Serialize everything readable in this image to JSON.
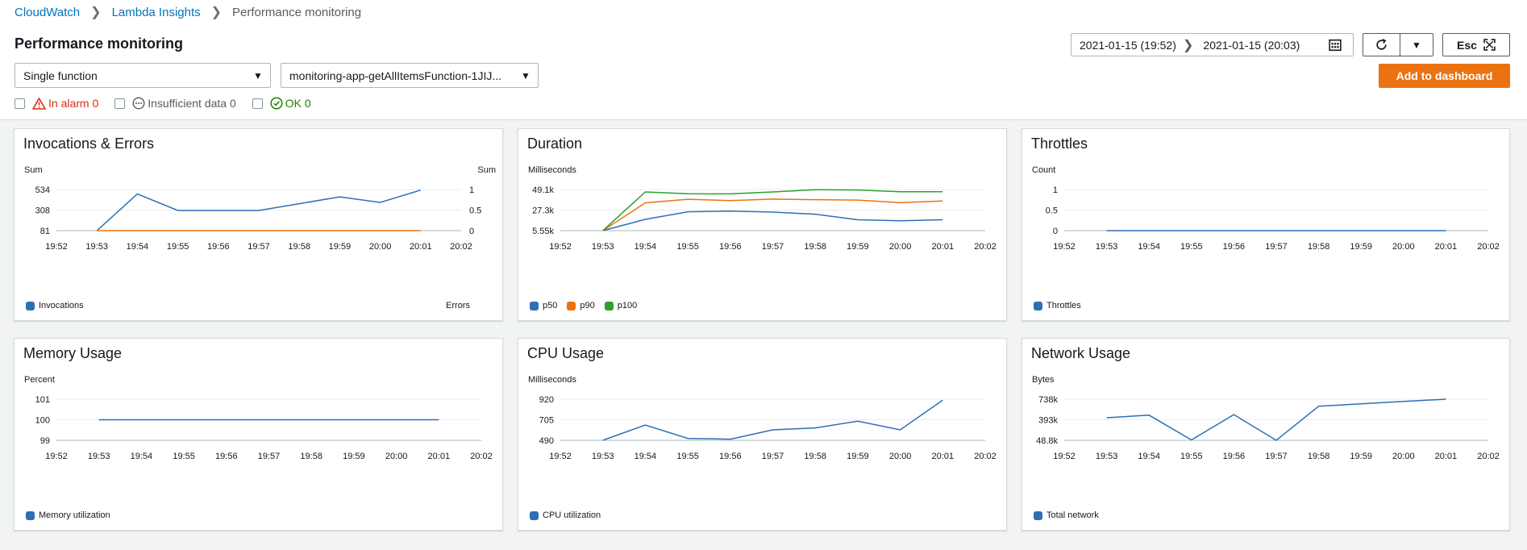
{
  "breadcrumb": {
    "items": [
      {
        "label": "CloudWatch"
      },
      {
        "label": "Lambda Insights"
      },
      {
        "label": "Performance monitoring"
      }
    ]
  },
  "page": {
    "title": "Performance monitoring"
  },
  "filters": {
    "mode_select": "Single function",
    "function_select": "monitoring-app-getAllItemsFunction-1JIJ..."
  },
  "alarms": {
    "in_alarm": "In alarm 0",
    "insufficient": "Insufficient data 0",
    "ok": "OK 0"
  },
  "timerange": {
    "from": "2021-01-15 (19:52)",
    "to": "2021-01-15 (20:03)"
  },
  "buttons": {
    "esc": "Esc",
    "add_dashboard": "Add to dashboard"
  },
  "colors": {
    "blue": "#2e6fb5",
    "orange": "#ec7211",
    "green": "#2ca02c",
    "alarm_red": "#d13212",
    "ok_green": "#1d8102"
  },
  "x_ticks": [
    "19:52",
    "19:53",
    "19:54",
    "19:55",
    "19:56",
    "19:57",
    "19:58",
    "19:59",
    "20:00",
    "20:01",
    "20:02"
  ],
  "charts": [
    {
      "id": "invocations",
      "title": "Invocations & Errors",
      "unit_left": "Sum",
      "unit_right": "Sum",
      "y_ticks": [
        "534",
        "308",
        "81"
      ],
      "y_ticks_right": [
        "1",
        "0.5",
        "0"
      ],
      "ylim": [
        81,
        534
      ],
      "ylim_right": [
        0,
        1
      ],
      "series": [
        {
          "name": "Invocations",
          "color": "#2e6fb5",
          "axis": "left",
          "values": [
            81,
            485,
            303,
            303,
            303,
            378,
            453,
            392,
            528
          ]
        },
        {
          "name": "Errors",
          "color": "#ec7211",
          "axis": "right",
          "values": [
            0,
            0,
            0,
            0,
            0,
            0,
            0,
            0,
            0
          ]
        }
      ],
      "legend_split": true
    },
    {
      "id": "duration",
      "title": "Duration",
      "unit_left": "Milliseconds",
      "y_ticks": [
        "49.1k",
        "27.3k",
        "5.55k"
      ],
      "ylim": [
        5550,
        49100
      ],
      "series": [
        {
          "name": "p50",
          "color": "#2e6fb5",
          "values": [
            5550,
            17500,
            25500,
            26200,
            25200,
            23000,
            17100,
            16000,
            17100
          ]
        },
        {
          "name": "p90",
          "color": "#ec7211",
          "values": [
            5550,
            35000,
            38800,
            37300,
            38900,
            38300,
            37900,
            35200,
            36900
          ]
        },
        {
          "name": "p100",
          "color": "#2ca02c",
          "values": [
            5550,
            46500,
            44700,
            44500,
            46500,
            48900,
            48600,
            46800,
            46700
          ]
        }
      ]
    },
    {
      "id": "throttles",
      "title": "Throttles",
      "unit_left": "Count",
      "y_ticks": [
        "1",
        "0.5",
        "0"
      ],
      "ylim": [
        0,
        1
      ],
      "series": [
        {
          "name": "Throttles",
          "color": "#2e6fb5",
          "values": [
            0,
            0,
            0,
            0,
            0,
            0,
            0,
            0,
            0
          ]
        }
      ]
    },
    {
      "id": "memory",
      "title": "Memory Usage",
      "unit_left": "Percent",
      "y_ticks": [
        "101",
        "100",
        "99"
      ],
      "ylim": [
        99,
        101
      ],
      "series": [
        {
          "name": "Memory utilization",
          "color": "#2e6fb5",
          "values": [
            100,
            100,
            100,
            100,
            100,
            100,
            100,
            100,
            100
          ]
        }
      ]
    },
    {
      "id": "cpu",
      "title": "CPU Usage",
      "unit_left": "Milliseconds",
      "y_ticks": [
        "920",
        "705",
        "490"
      ],
      "ylim": [
        490,
        920
      ],
      "series": [
        {
          "name": "CPU utilization",
          "color": "#2e6fb5",
          "values": [
            490,
            650,
            510,
            502,
            600,
            620,
            690,
            600,
            910
          ]
        }
      ]
    },
    {
      "id": "network",
      "title": "Network Usage",
      "unit_left": "Bytes",
      "y_ticks": [
        "738k",
        "393k",
        "48.8k"
      ],
      "ylim": [
        48800,
        738000
      ],
      "series": [
        {
          "name": "Total network",
          "color": "#2e6fb5",
          "values": [
            427000,
            470000,
            55000,
            480000,
            48800,
            620000,
            660000,
            700000,
            738000
          ]
        }
      ]
    }
  ]
}
